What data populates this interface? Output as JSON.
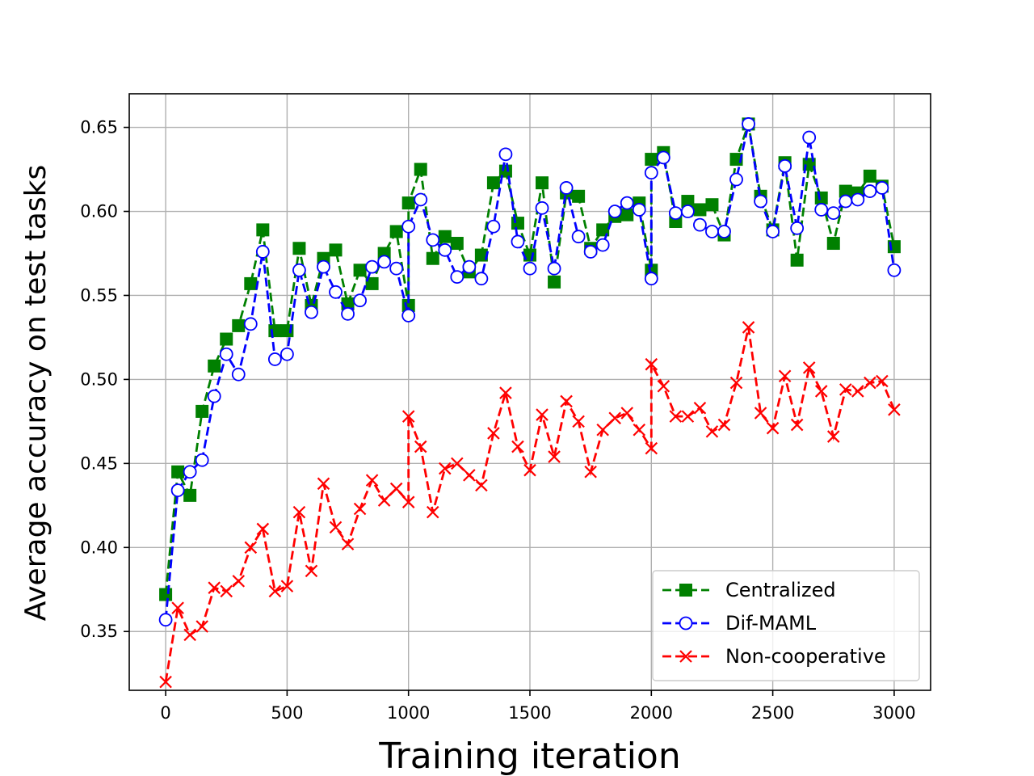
{
  "chart_data": {
    "type": "line",
    "title": "",
    "xlabel": "Training iteration",
    "ylabel": "Average accuracy on test tasks",
    "xlim": [
      -150,
      3150
    ],
    "ylim": [
      0.315,
      0.67
    ],
    "xticks": [
      0,
      500,
      1000,
      1500,
      2000,
      2500,
      3000
    ],
    "yticks": [
      0.35,
      0.4,
      0.45,
      0.5,
      0.55,
      0.6,
      0.65
    ],
    "grid": true,
    "legend_position": "lower-right",
    "x": [
      0,
      50,
      100,
      150,
      200,
      250,
      300,
      350,
      400,
      450,
      500,
      550,
      600,
      650,
      700,
      750,
      800,
      850,
      900,
      950,
      1000,
      1000,
      1050,
      1100,
      1150,
      1200,
      1250,
      1300,
      1350,
      1400,
      1450,
      1500,
      1550,
      1600,
      1650,
      1700,
      1750,
      1800,
      1850,
      1900,
      1950,
      2000,
      2000,
      2050,
      2100,
      2150,
      2200,
      2250,
      2300,
      2350,
      2400,
      2450,
      2500,
      2550,
      2600,
      2650,
      2700,
      2750,
      2800,
      2850,
      2900,
      2950,
      3000
    ],
    "series": [
      {
        "name": "Centralized",
        "color": "#008000",
        "marker": "square",
        "values": [
          0.372,
          0.445,
          0.431,
          0.481,
          0.508,
          0.524,
          0.532,
          0.557,
          0.589,
          0.529,
          0.529,
          0.578,
          0.544,
          0.572,
          0.577,
          0.545,
          0.565,
          0.557,
          0.575,
          0.588,
          0.544,
          0.605,
          0.625,
          0.572,
          0.585,
          0.581,
          0.564,
          0.574,
          0.617,
          0.624,
          0.593,
          0.574,
          0.617,
          0.558,
          0.611,
          0.609,
          0.578,
          0.589,
          0.597,
          0.598,
          0.605,
          0.565,
          0.631,
          0.635,
          0.594,
          0.606,
          0.601,
          0.604,
          0.586,
          0.631,
          0.652,
          0.609,
          0.589,
          0.629,
          0.571,
          0.628,
          0.608,
          0.581,
          0.612,
          0.611,
          0.621,
          0.615,
          0.579
        ]
      },
      {
        "name": "Dif-MAML",
        "color": "#0000ff",
        "marker": "circle",
        "values": [
          0.357,
          0.434,
          0.445,
          0.452,
          0.49,
          0.515,
          0.503,
          0.533,
          0.576,
          0.512,
          0.515,
          0.565,
          0.54,
          0.567,
          0.552,
          0.539,
          0.547,
          0.567,
          0.57,
          0.566,
          0.538,
          0.591,
          0.607,
          0.583,
          0.577,
          0.561,
          0.567,
          0.56,
          0.591,
          0.634,
          0.582,
          0.566,
          0.602,
          0.566,
          0.614,
          0.585,
          0.576,
          0.58,
          0.6,
          0.605,
          0.601,
          0.56,
          0.623,
          0.632,
          0.599,
          0.6,
          0.592,
          0.588,
          0.588,
          0.619,
          0.652,
          0.606,
          0.588,
          0.627,
          0.59,
          0.644,
          0.601,
          0.599,
          0.606,
          0.607,
          0.612,
          0.614,
          0.565
        ]
      },
      {
        "name": "Non-cooperative",
        "color": "#ff0000",
        "marker": "x",
        "values": [
          0.32,
          0.364,
          0.348,
          0.353,
          0.376,
          0.374,
          0.38,
          0.4,
          0.411,
          0.374,
          0.377,
          0.421,
          0.386,
          0.438,
          0.412,
          0.402,
          0.423,
          0.44,
          0.428,
          0.435,
          0.427,
          0.478,
          0.46,
          0.421,
          0.447,
          0.45,
          0.443,
          0.437,
          0.468,
          0.492,
          0.46,
          0.446,
          0.479,
          0.454,
          0.487,
          0.475,
          0.445,
          0.47,
          0.477,
          0.48,
          0.47,
          0.459,
          0.509,
          0.496,
          0.478,
          0.478,
          0.483,
          0.469,
          0.473,
          0.498,
          0.531,
          0.48,
          0.471,
          0.502,
          0.473,
          0.507,
          0.493,
          0.466,
          0.494,
          0.493,
          0.498,
          0.499,
          0.482
        ]
      }
    ]
  }
}
